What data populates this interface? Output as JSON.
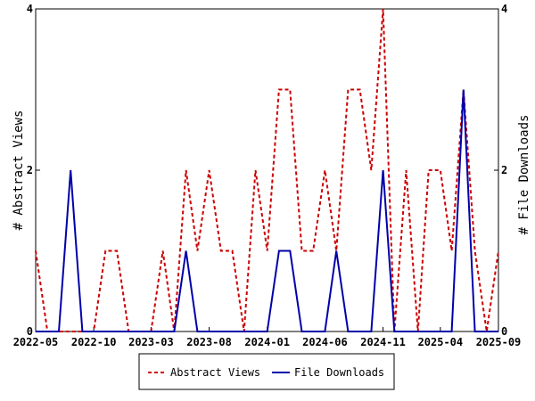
{
  "chart_data": {
    "type": "line",
    "x_tick_labels": [
      "2022-05",
      "2022-10",
      "2023-03",
      "2023-08",
      "2024-01",
      "2024-06",
      "2024-11",
      "2025-04",
      "2025-09"
    ],
    "months": [
      "2022-05",
      "2022-06",
      "2022-07",
      "2022-08",
      "2022-09",
      "2022-10",
      "2022-11",
      "2022-12",
      "2023-01",
      "2023-02",
      "2023-03",
      "2023-04",
      "2023-05",
      "2023-06",
      "2023-07",
      "2023-08",
      "2023-09",
      "2023-10",
      "2023-11",
      "2023-12",
      "2024-01",
      "2024-02",
      "2024-03",
      "2024-04",
      "2024-05",
      "2024-06",
      "2024-07",
      "2024-08",
      "2024-09",
      "2024-10",
      "2024-11",
      "2024-12",
      "2025-01",
      "2025-02",
      "2025-03",
      "2025-04",
      "2025-05",
      "2025-06",
      "2025-07",
      "2025-08",
      "2025-09"
    ],
    "ylabel_left": "# Abstract Views",
    "ylabel_right": "# File Downloads",
    "ylim_left": [
      0,
      4
    ],
    "ylim_right": [
      0,
      4
    ],
    "y_ticks_left": [
      "0",
      "2",
      "4"
    ],
    "y_ticks_right": [
      "0",
      "2",
      "4"
    ],
    "grid": false,
    "legend_position": "bottom-center",
    "series": [
      {
        "name": "Abstract Views",
        "axis": "left",
        "color": "#cc0000",
        "style": "dashed",
        "points": [
          [
            "2022-05-01",
            1
          ],
          [
            "2022-06-01",
            0
          ],
          [
            "2022-07-01",
            0
          ],
          [
            "2022-08-01",
            0
          ],
          [
            "2022-09-01",
            0
          ],
          [
            "2022-10-01",
            0
          ],
          [
            "2022-11-01",
            1
          ],
          [
            "2022-12-01",
            1
          ],
          [
            "2023-01-01",
            0
          ],
          [
            "2023-02-01",
            0
          ],
          [
            "2023-03-01",
            0
          ],
          [
            "2023-04-01",
            1
          ],
          [
            "2023-05-01",
            0
          ],
          [
            "2023-06-01",
            2
          ],
          [
            "2023-07-01",
            1
          ],
          [
            "2023-08-01",
            2
          ],
          [
            "2023-09-01",
            1
          ],
          [
            "2023-10-01",
            1
          ],
          [
            "2023-11-01",
            0
          ],
          [
            "2023-12-01",
            2
          ],
          [
            "2024-01-01",
            1
          ],
          [
            "2024-02-01",
            3
          ],
          [
            "2024-03-01",
            3
          ],
          [
            "2024-04-01",
            1
          ],
          [
            "2024-05-01",
            1
          ],
          [
            "2024-06-01",
            2
          ],
          [
            "2024-07-01",
            1
          ],
          [
            "2024-08-01",
            3
          ],
          [
            "2024-09-01",
            3
          ],
          [
            "2024-10-01",
            2
          ],
          [
            "2024-11-01",
            4
          ],
          [
            "2024-12-01",
            0
          ],
          [
            "2025-01-01",
            2
          ],
          [
            "2025-02-01",
            0
          ],
          [
            "2025-03-01",
            2
          ],
          [
            "2025-04-01",
            2
          ],
          [
            "2025-05-01",
            1
          ],
          [
            "2025-06-01",
            3
          ],
          [
            "2025-07-01",
            1
          ],
          [
            "2025-08-01",
            0
          ],
          [
            "2025-09-01",
            1
          ]
        ]
      },
      {
        "name": "File Downloads",
        "axis": "right",
        "color": "#0000aa",
        "style": "solid",
        "points": [
          [
            "2022-05-01",
            0
          ],
          [
            "2022-06-01",
            0
          ],
          [
            "2022-07-01",
            0
          ],
          [
            "2022-08-01",
            2
          ],
          [
            "2022-09-01",
            0
          ],
          [
            "2022-10-01",
            0
          ],
          [
            "2022-11-01",
            0
          ],
          [
            "2022-12-01",
            0
          ],
          [
            "2023-01-01",
            0
          ],
          [
            "2023-02-01",
            0
          ],
          [
            "2023-03-01",
            0
          ],
          [
            "2023-04-01",
            0
          ],
          [
            "2023-05-01",
            0
          ],
          [
            "2023-06-01",
            1
          ],
          [
            "2023-07-01",
            0
          ],
          [
            "2023-08-01",
            0
          ],
          [
            "2023-09-01",
            0
          ],
          [
            "2023-10-01",
            0
          ],
          [
            "2023-11-01",
            0
          ],
          [
            "2023-12-01",
            0
          ],
          [
            "2024-01-01",
            0
          ],
          [
            "2024-02-01",
            1
          ],
          [
            "2024-03-01",
            1
          ],
          [
            "2024-04-01",
            0
          ],
          [
            "2024-05-01",
            0
          ],
          [
            "2024-06-01",
            0
          ],
          [
            "2024-07-01",
            1
          ],
          [
            "2024-08-01",
            0
          ],
          [
            "2024-09-01",
            0
          ],
          [
            "2024-10-01",
            0
          ],
          [
            "2024-11-01",
            2
          ],
          [
            "2024-12-01",
            0
          ],
          [
            "2025-01-01",
            0
          ],
          [
            "2025-02-01",
            0
          ],
          [
            "2025-03-01",
            0
          ],
          [
            "2025-04-01",
            0
          ],
          [
            "2025-05-01",
            0
          ],
          [
            "2025-06-01",
            3
          ],
          [
            "2025-07-01",
            0
          ],
          [
            "2025-08-01",
            0
          ],
          [
            "2025-09-01",
            0
          ]
        ]
      }
    ]
  }
}
